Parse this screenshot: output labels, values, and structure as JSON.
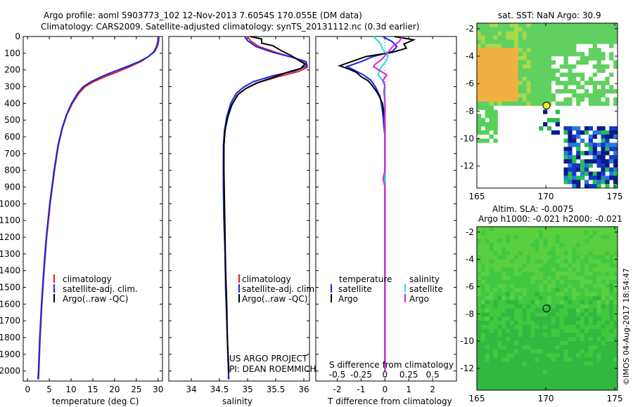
{
  "title": {
    "line1": "Argo profile: aoml 5903773_102 12-Nov-2013 7.6054S 170.055E (DM data)",
    "line2": "Climatology: CARS2009. Satellite-adjusted climatology: synTS_20131112.nc (0.3d earlier)"
  },
  "colors": {
    "climatology": "#e02020",
    "satellite": "#1428e0",
    "argo": "#000000",
    "salinity_satellite": "#22dde8",
    "salinity_argo": "#e020e0"
  },
  "depth_ticks": [
    "0",
    "100",
    "200",
    "300",
    "400",
    "500",
    "600",
    "700",
    "800",
    "900",
    "1000",
    "1100",
    "1200",
    "1300",
    "1400",
    "1500",
    "1600",
    "1700",
    "1800",
    "1900",
    "2000"
  ],
  "chart_data": [
    {
      "type": "line",
      "name": "temperature",
      "xlabel": "temperature (deg C)",
      "xlim": [
        -1,
        31
      ],
      "ylim": [
        2060,
        0
      ],
      "xticks": [
        "0",
        "5",
        "10",
        "15",
        "20",
        "25",
        "30"
      ],
      "xtick_values": [
        0,
        5,
        10,
        15,
        20,
        25,
        30
      ],
      "legend": [
        "climatology",
        "satellite-adj. clim.",
        "Argo(..raw -QC)"
      ],
      "series": [
        {
          "name": "climatology",
          "color_key": "climatology",
          "points": [
            [
              30.0,
              0
            ],
            [
              29.9,
              30
            ],
            [
              29.6,
              60
            ],
            [
              29.0,
              90
            ],
            [
              27.8,
              120
            ],
            [
              26.0,
              150
            ],
            [
              23.5,
              180
            ],
            [
              20.8,
              210
            ],
            [
              17.8,
              240
            ],
            [
              15.2,
              270
            ],
            [
              13.2,
              300
            ],
            [
              11.8,
              340
            ],
            [
              10.3,
              400
            ],
            [
              9.0,
              470
            ],
            [
              8.0,
              550
            ],
            [
              7.1,
              650
            ],
            [
              6.2,
              800
            ],
            [
              5.2,
              1000
            ],
            [
              4.4,
              1200
            ],
            [
              3.8,
              1400
            ],
            [
              3.3,
              1600
            ],
            [
              2.9,
              1800
            ],
            [
              2.6,
              2000
            ],
            [
              2.5,
              2050
            ]
          ]
        },
        {
          "name": "satellite-adj. clim.",
          "color_key": "satellite",
          "points": [
            [
              30.2,
              0
            ],
            [
              30.1,
              30
            ],
            [
              29.8,
              60
            ],
            [
              29.2,
              90
            ],
            [
              27.8,
              120
            ],
            [
              25.6,
              150
            ],
            [
              22.8,
              180
            ],
            [
              19.8,
              210
            ],
            [
              17.0,
              240
            ],
            [
              14.6,
              270
            ],
            [
              12.8,
              300
            ],
            [
              11.5,
              340
            ],
            [
              10.1,
              400
            ],
            [
              8.9,
              470
            ],
            [
              7.9,
              550
            ],
            [
              7.0,
              650
            ],
            [
              6.1,
              800
            ],
            [
              5.1,
              1000
            ],
            [
              4.3,
              1200
            ],
            [
              3.7,
              1400
            ],
            [
              3.2,
              1600
            ],
            [
              2.8,
              1800
            ],
            [
              2.5,
              2000
            ],
            [
              2.4,
              2050
            ]
          ]
        }
      ]
    },
    {
      "type": "line",
      "name": "salinity",
      "xlabel": "salinity",
      "xlim": [
        33.6,
        36.1
      ],
      "ylim": [
        2060,
        0
      ],
      "xticks": [
        "34",
        "34.5",
        "35",
        "35.5",
        "36"
      ],
      "xtick_values": [
        34,
        34.5,
        35,
        35.5,
        36
      ],
      "legend": [
        "climatology",
        "satellite-adj. clim.",
        "Argo(..raw -QC)"
      ],
      "annotations": [
        "US ARGO PROJECT",
        "PI: DEAN ROEMMICH"
      ],
      "series": [
        {
          "name": "climatology",
          "color_key": "climatology",
          "points": [
            [
              35.0,
              0
            ],
            [
              35.05,
              25
            ],
            [
              35.2,
              60
            ],
            [
              35.55,
              100
            ],
            [
              35.85,
              130
            ],
            [
              36.02,
              160
            ],
            [
              36.06,
              185
            ],
            [
              35.9,
              210
            ],
            [
              35.55,
              240
            ],
            [
              35.2,
              275
            ],
            [
              35.0,
              305
            ],
            [
              34.85,
              340
            ],
            [
              34.73,
              400
            ],
            [
              34.64,
              480
            ],
            [
              34.6,
              560
            ],
            [
              34.58,
              650
            ],
            [
              34.57,
              750
            ],
            [
              34.57,
              900
            ],
            [
              34.58,
              1100
            ],
            [
              34.6,
              1300
            ],
            [
              34.61,
              1500
            ],
            [
              34.63,
              1700
            ],
            [
              34.65,
              1900
            ],
            [
              34.66,
              2000
            ],
            [
              34.67,
              2050
            ]
          ]
        },
        {
          "name": "satellite-adj. clim.",
          "color_key": "satellite",
          "points": [
            [
              34.95,
              0
            ],
            [
              35.0,
              25
            ],
            [
              35.15,
              60
            ],
            [
              35.45,
              95
            ],
            [
              35.8,
              125
            ],
            [
              36.04,
              150
            ],
            [
              36.06,
              175
            ],
            [
              35.85,
              205
            ],
            [
              35.45,
              235
            ],
            [
              35.1,
              270
            ],
            [
              34.92,
              305
            ],
            [
              34.8,
              340
            ],
            [
              34.7,
              400
            ],
            [
              34.63,
              480
            ],
            [
              34.59,
              560
            ],
            [
              34.57,
              650
            ],
            [
              34.57,
              750
            ],
            [
              34.57,
              900
            ],
            [
              34.58,
              1100
            ],
            [
              34.6,
              1300
            ],
            [
              34.61,
              1500
            ],
            [
              34.63,
              1700
            ],
            [
              34.65,
              1900
            ],
            [
              34.66,
              2000
            ],
            [
              34.66,
              2050
            ]
          ]
        },
        {
          "name": "Argo",
          "color_key": "argo",
          "points": [
            [
              35.05,
              0
            ],
            [
              35.25,
              15
            ],
            [
              35.25,
              40
            ],
            [
              35.45,
              55
            ],
            [
              35.6,
              85
            ],
            [
              35.75,
              110
            ],
            [
              35.9,
              140
            ],
            [
              36.02,
              165
            ],
            [
              35.95,
              190
            ],
            [
              35.7,
              215
            ],
            [
              35.45,
              245
            ],
            [
              35.15,
              280
            ],
            [
              34.95,
              315
            ],
            [
              34.82,
              350
            ],
            [
              34.72,
              410
            ],
            [
              34.65,
              480
            ],
            [
              34.6,
              560
            ],
            [
              34.58,
              650
            ],
            [
              34.58,
              800
            ],
            [
              34.59,
              1000
            ],
            [
              34.6,
              1200
            ],
            [
              34.61,
              1400
            ],
            [
              34.63,
              1600
            ],
            [
              34.64,
              1800
            ],
            [
              34.66,
              1950
            ],
            [
              34.67,
              2010
            ]
          ]
        }
      ]
    },
    {
      "type": "line",
      "name": "differences",
      "xlabel": "T difference from climatology",
      "x2label": "S difference from climatology",
      "xlim": [
        -2.9,
        3.0
      ],
      "ylim": [
        2060,
        0
      ],
      "xticks": [
        "-2",
        "-1",
        "0",
        "1",
        "2"
      ],
      "xtick_values": [
        -2,
        -1,
        0,
        1,
        2
      ],
      "x2ticks": [
        "-0.5",
        "-0.25",
        "0",
        "0.25",
        "0.5"
      ],
      "x2tick_values": [
        -0.5,
        -0.25,
        0,
        0.25,
        0.5
      ],
      "legend_headers": [
        "temperature",
        "salinity"
      ],
      "legend": [
        "satellite",
        "Argo",
        "satellite",
        "Argo"
      ],
      "series": [
        {
          "name": "T satellite",
          "color_key": "satellite",
          "units": "T",
          "points": [
            [
              -0.1,
              0
            ],
            [
              0.3,
              30
            ],
            [
              0.5,
              60
            ],
            [
              0.3,
              90
            ],
            [
              -0.5,
              120
            ],
            [
              -1.0,
              150
            ],
            [
              -1.6,
              180
            ],
            [
              -1.3,
              200
            ],
            [
              -0.9,
              230
            ],
            [
              -0.6,
              260
            ],
            [
              -0.4,
              300
            ],
            [
              -0.2,
              360
            ],
            [
              -0.1,
              450
            ],
            [
              0.0,
              600
            ],
            [
              0.0,
              800
            ],
            [
              0.0,
              1200
            ],
            [
              0.0,
              1600
            ],
            [
              0.0,
              2000
            ]
          ]
        },
        {
          "name": "T Argo",
          "color_key": "argo",
          "units": "T",
          "points": [
            [
              0.4,
              0
            ],
            [
              1.2,
              20
            ],
            [
              0.8,
              45
            ],
            [
              0.9,
              70
            ],
            [
              0.3,
              95
            ],
            [
              -0.8,
              120
            ],
            [
              -1.4,
              150
            ],
            [
              -1.9,
              175
            ],
            [
              -1.5,
              195
            ],
            [
              -1.2,
              215
            ],
            [
              -1.0,
              240
            ],
            [
              -0.7,
              265
            ],
            [
              -0.5,
              300
            ],
            [
              -0.3,
              340
            ],
            [
              -0.1,
              400
            ],
            [
              0.0,
              500
            ],
            [
              0.0,
              700
            ],
            [
              0.0,
              1000
            ],
            [
              0.0,
              1500
            ],
            [
              0.0,
              2000
            ]
          ]
        },
        {
          "name": "S satellite",
          "color_key": "salinity_satellite",
          "units": "S",
          "points": [
            [
              -0.12,
              0
            ],
            [
              -0.05,
              40
            ],
            [
              -0.02,
              80
            ],
            [
              0.03,
              110
            ],
            [
              0.02,
              140
            ],
            [
              -0.02,
              170
            ],
            [
              -0.06,
              200
            ],
            [
              -0.07,
              230
            ],
            [
              -0.03,
              260
            ],
            [
              0.0,
              300
            ],
            [
              0.0,
              360
            ],
            [
              0.0,
              500
            ],
            [
              0.0,
              1000
            ],
            [
              0.0,
              1500
            ],
            [
              0.0,
              2000
            ]
          ]
        },
        {
          "name": "S Argo",
          "color_key": "salinity_argo",
          "units": "S",
          "points": [
            [
              0.18,
              0
            ],
            [
              0.15,
              30
            ],
            [
              0.08,
              60
            ],
            [
              0.04,
              90
            ],
            [
              0.0,
              115
            ],
            [
              -0.04,
              140
            ],
            [
              -0.1,
              165
            ],
            [
              -0.12,
              180
            ],
            [
              -0.05,
              205
            ],
            [
              0.02,
              230
            ],
            [
              -0.02,
              260
            ],
            [
              0.0,
              290
            ],
            [
              -0.01,
              330
            ],
            [
              0.0,
              400
            ],
            [
              0.0,
              600
            ],
            [
              0.0,
              800
            ],
            [
              -0.02,
              850
            ],
            [
              0.0,
              900
            ],
            [
              0.0,
              1200
            ],
            [
              0.0,
              1500
            ],
            [
              0.0,
              2000
            ]
          ]
        }
      ]
    },
    {
      "type": "heatmap",
      "name": "sst_map",
      "title": "sat. SST: NaN Argo: 30.9",
      "xlim": [
        165,
        175.2
      ],
      "ylim": [
        -13.6,
        -1.6
      ],
      "xticks": [
        "165",
        "170",
        "175"
      ],
      "xtick_values": [
        165,
        170,
        175
      ],
      "yticks": [
        "-2",
        "-4",
        "-6",
        "-8",
        "-10",
        "-12"
      ],
      "ytick_values": [
        -2,
        -4,
        -6,
        -8,
        -10,
        -12
      ],
      "float_position": [
        170.05,
        -7.6
      ]
    },
    {
      "type": "heatmap",
      "name": "sla_map",
      "title": "Altim. SLA: -0.0075",
      "subtitle": "Argo h1000: -0.021 h2000: -0.021",
      "xlim": [
        165,
        175.2
      ],
      "ylim": [
        -13.6,
        -1.6
      ],
      "xticks": [
        "165",
        "170",
        "175"
      ],
      "xtick_values": [
        165,
        170,
        175
      ],
      "yticks": [
        "-2",
        "-4",
        "-6",
        "-8",
        "-10",
        "-12"
      ],
      "ytick_values": [
        -2,
        -4,
        -6,
        -8,
        -10,
        -12
      ],
      "float_position": [
        170.05,
        -7.6
      ]
    }
  ],
  "credit": "©IMOS 04-Aug-2017 18:54:47"
}
